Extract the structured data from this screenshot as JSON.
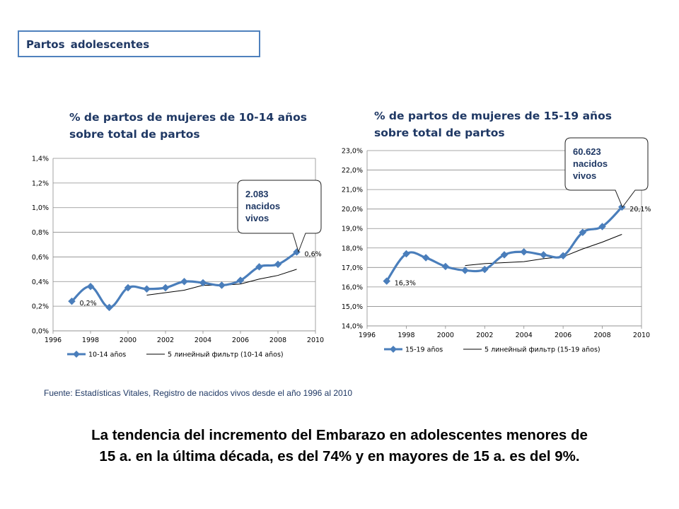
{
  "header": {
    "title": "Partos  adolescentes"
  },
  "chart_data": [
    {
      "type": "line",
      "title_line1": "% de partos de mujeres de 10-14 años",
      "title_line2": "sobre total de partos",
      "xlim": [
        1996,
        2010
      ],
      "ylim": [
        0,
        1.4
      ],
      "x_ticks": [
        1996,
        1998,
        2000,
        2002,
        2004,
        2006,
        2008,
        2010
      ],
      "x_tick_labels": [
        "1996",
        "1998",
        "2000",
        "2002",
        "2004",
        "2006",
        "2008",
        "2010"
      ],
      "y_ticks": [
        0,
        0.2,
        0.4,
        0.6,
        0.8,
        1.0,
        1.2,
        1.4
      ],
      "y_tick_labels": [
        "0,0%",
        "0,2%",
        "0,4%",
        "0,6%",
        "0,8%",
        "1,0%",
        "1,2%",
        "1,4%"
      ],
      "grid": "horizontal",
      "legend_position": "bottom",
      "series": [
        {
          "name": "10-14 años",
          "color": "#4a7ebb",
          "x": [
            1997,
            1998,
            1999,
            2000,
            2001,
            2002,
            2003,
            2004,
            2005,
            2006,
            2007,
            2008,
            2009
          ],
          "values": [
            0.24,
            0.36,
            0.19,
            0.35,
            0.34,
            0.35,
            0.4,
            0.39,
            0.37,
            0.41,
            0.52,
            0.54,
            0.64
          ]
        },
        {
          "name": "5 линейный фильтр (10-14 años)",
          "color": "#000000",
          "x": [
            2001,
            2002,
            2003,
            2004,
            2005,
            2006,
            2007,
            2008,
            2009
          ],
          "values": [
            0.29,
            0.31,
            0.33,
            0.37,
            0.37,
            0.38,
            0.42,
            0.45,
            0.5
          ]
        }
      ],
      "data_labels": [
        {
          "x": 1997,
          "y": 0.24,
          "text": "0,2%"
        },
        {
          "x": 2009,
          "y": 0.64,
          "text": "0,6%"
        }
      ],
      "callout": {
        "line1": "2.083",
        "line2": "nacidos",
        "line3": "vivos"
      }
    },
    {
      "type": "line",
      "title_line1": "% de partos de mujeres de 15-19 años",
      "title_line2": "sobre total de partos",
      "xlim": [
        1996,
        2010
      ],
      "ylim": [
        14,
        23
      ],
      "x_ticks": [
        1996,
        1998,
        2000,
        2002,
        2004,
        2006,
        2008,
        2010
      ],
      "x_tick_labels": [
        "1996",
        "1998",
        "2000",
        "2002",
        "2004",
        "2006",
        "2008",
        "2010"
      ],
      "y_ticks": [
        14,
        15,
        16,
        17,
        18,
        19,
        20,
        21,
        22,
        23
      ],
      "y_tick_labels": [
        "14,0%",
        "15,0%",
        "16,0%",
        "17,0%",
        "18,0%",
        "19,0%",
        "20,0%",
        "21,0%",
        "22,0%",
        "23,0%"
      ],
      "grid": "horizontal",
      "legend_position": "bottom",
      "series": [
        {
          "name": "15-19 años",
          "color": "#4a7ebb",
          "x": [
            1997,
            1998,
            1999,
            2000,
            2001,
            2002,
            2003,
            2004,
            2005,
            2006,
            2007,
            2008,
            2009
          ],
          "values": [
            16.3,
            17.7,
            17.5,
            17.05,
            16.85,
            16.9,
            17.65,
            17.8,
            17.65,
            17.6,
            18.8,
            19.1,
            20.1
          ]
        },
        {
          "name": "5 линейный фильтр (15-19 años)",
          "color": "#000000",
          "x": [
            2001,
            2002,
            2003,
            2004,
            2005,
            2006,
            2007,
            2008,
            2009
          ],
          "values": [
            17.1,
            17.2,
            17.25,
            17.3,
            17.45,
            17.55,
            17.95,
            18.3,
            18.7
          ]
        }
      ],
      "data_labels": [
        {
          "x": 1997,
          "y": 16.3,
          "text": "16,3%"
        },
        {
          "x": 2009,
          "y": 20.1,
          "text": "20,1%"
        }
      ],
      "callout": {
        "line1": "60.623",
        "line2": "nacidos",
        "line3": "vivos"
      }
    }
  ],
  "source": "Fuente: Estadísticas Vitales, Registro de nacidos vivos desde el año 1996 al 2010",
  "conclusion": {
    "line1": "La tendencia del incremento del Embarazo en adolescentes menores de",
    "line2": "15 a. en la última década, es del 74% y en mayores de 15 a. es del 9%."
  }
}
